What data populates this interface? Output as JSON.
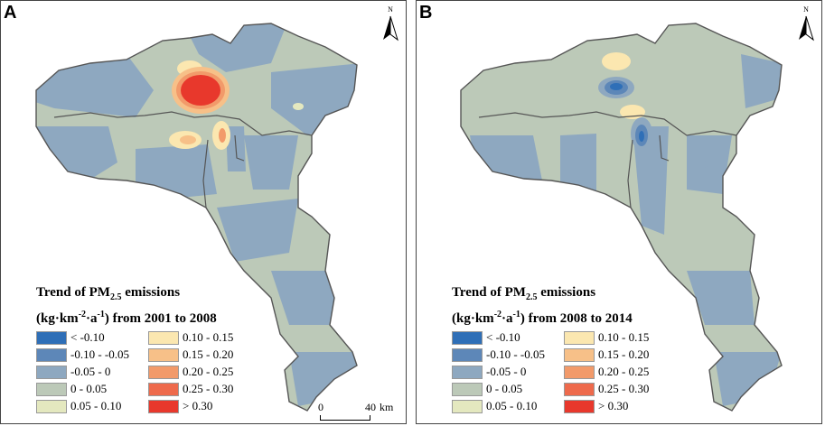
{
  "panels": [
    {
      "letter": "A",
      "title_line1": "Trend of PM",
      "title_sub": "2.5",
      "title_emissions": " emissions",
      "title_line2_a": "(kg·km",
      "title_sup1": "-2",
      "title_line2_b": "·a",
      "title_sup2": "-1",
      "title_line2_c": ") from 2001 to 2008",
      "north_label": "N",
      "scale_zero": "0",
      "scale_end": "40",
      "scale_unit": "km"
    },
    {
      "letter": "B",
      "title_line1": "Trend of PM",
      "title_sub": "2.5",
      "title_emissions": " emissions",
      "title_line2_a": "(kg·km",
      "title_sup1": "-2",
      "title_line2_b": "·a",
      "title_sup2": "-1",
      "title_line2_c": ") from 2008 to 2014",
      "north_label": "N"
    }
  ],
  "legend": [
    {
      "label": "< -0.10",
      "color": "#2f6fb7"
    },
    {
      "label": "-0.10 - -0.05",
      "color": "#5d87b8"
    },
    {
      "label": "-0.05 - 0",
      "color": "#8ea8c0"
    },
    {
      "label": "0 - 0.05",
      "color": "#bcc9b8"
    },
    {
      "label": "0.05 - 0.10",
      "color": "#e4e8bf"
    },
    {
      "label": "0.10 - 0.15",
      "color": "#fbe7b0"
    },
    {
      "label": "0.15 - 0.20",
      "color": "#f7c088"
    },
    {
      "label": "0.20 - 0.25",
      "color": "#f29a6a"
    },
    {
      "label": "0.25 - 0.30",
      "color": "#ee6a4c"
    },
    {
      "label": "> 0.30",
      "color": "#e8382c"
    }
  ],
  "colors": {
    "base": "#bcc9b8",
    "neg": "#8ea8c0",
    "border": "#555555"
  }
}
